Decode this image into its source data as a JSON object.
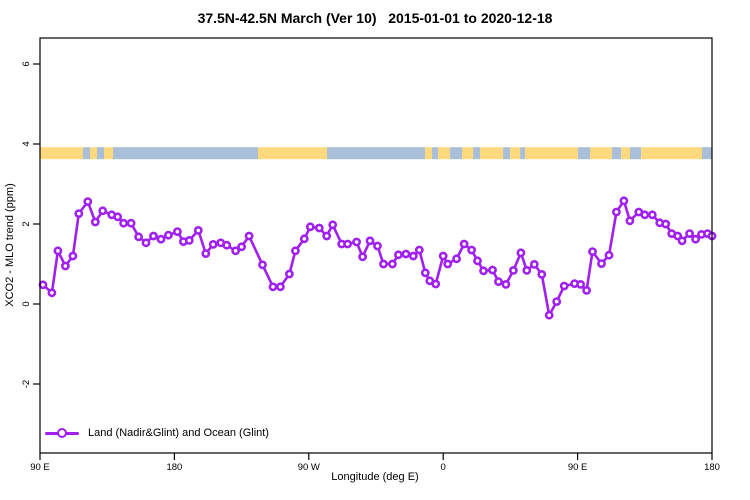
{
  "figure": {
    "title": "37.5N-42.5N March (Ver 10)   2015-01-01 to 2020-12-18",
    "xlabel": "Longitude (deg E)",
    "ylabel": "XCO2 - MLO trend (ppm)",
    "legend_label": "Land (Nadir&Glint) and Ocean (Glint)"
  },
  "colors": {
    "series": "#A020F0",
    "land": "#FFD97E",
    "ocean": "#A9BED9",
    "axis": "#000000",
    "background": "#FFFFFF"
  },
  "chart_data": {
    "type": "line",
    "title": "37.5N-42.5N March (Ver 10)   2015-01-01 to 2020-12-18",
    "xlabel": "Longitude (deg E)",
    "ylabel": "XCO2 - MLO trend (ppm)",
    "legend": {
      "position": "bottom-left",
      "entries": [
        "Land (Nadir&Glint) and Ocean (Glint)"
      ]
    },
    "grid": false,
    "x_axis": {
      "note": "degrees eastward unwrapped, 0 = 90E start of axis, 450 = 180 at right edge",
      "range": [
        0,
        450
      ],
      "ticks": [
        {
          "pos": 0,
          "label": "90 E"
        },
        {
          "pos": 90,
          "label": "180"
        },
        {
          "pos": 180,
          "label": "90 W"
        },
        {
          "pos": 270,
          "label": "0"
        },
        {
          "pos": 360,
          "label": "90 E"
        },
        {
          "pos": 450,
          "label": "180"
        }
      ]
    },
    "y_axis": {
      "range": [
        -3.72,
        6.65
      ],
      "ticks": [
        -2,
        0,
        2,
        4,
        6
      ]
    },
    "series": [
      {
        "name": "Land (Nadir&Glint) and Ocean (Glint)",
        "marker": "open-circle",
        "x": [
          2,
          8,
          12,
          17,
          22,
          26,
          32,
          37,
          42,
          48,
          52,
          56,
          61,
          66,
          71,
          76,
          81,
          86,
          92,
          96,
          100,
          106,
          111,
          116,
          121,
          125,
          131,
          135,
          140,
          149,
          156,
          161,
          167,
          171,
          177,
          181,
          187,
          192,
          196,
          202,
          206,
          212,
          216,
          221,
          226,
          230,
          236,
          240,
          245,
          250,
          254,
          258,
          261,
          265,
          270,
          273,
          279,
          284,
          289,
          293,
          297,
          303,
          307,
          312,
          317,
          322,
          326,
          331,
          336,
          341,
          346,
          351,
          358,
          362,
          366,
          370,
          376,
          381,
          386,
          391,
          395,
          401,
          405,
          410,
          415,
          419,
          423,
          427,
          430,
          435,
          439,
          443,
          447,
          450
        ],
        "y": [
          0.48,
          0.28,
          1.33,
          0.95,
          1.2,
          2.26,
          2.56,
          2.05,
          2.33,
          2.23,
          2.18,
          2.02,
          2.02,
          1.68,
          1.53,
          1.7,
          1.62,
          1.72,
          1.81,
          1.56,
          1.59,
          1.84,
          1.26,
          1.49,
          1.53,
          1.47,
          1.33,
          1.43,
          1.7,
          0.98,
          0.43,
          0.43,
          0.75,
          1.33,
          1.63,
          1.93,
          1.9,
          1.7,
          1.98,
          1.5,
          1.5,
          1.55,
          1.18,
          1.58,
          1.45,
          1.0,
          1.0,
          1.23,
          1.25,
          1.2,
          1.35,
          0.78,
          0.58,
          0.5,
          1.2,
          1.0,
          1.13,
          1.5,
          1.35,
          1.08,
          0.83,
          0.85,
          0.56,
          0.49,
          0.84,
          1.28,
          0.84,
          0.99,
          0.74,
          -0.28,
          0.06,
          0.45,
          0.51,
          0.49,
          0.34,
          1.31,
          1.01,
          1.22,
          2.3,
          2.58,
          2.08,
          2.3,
          2.23,
          2.23,
          2.03,
          2.0,
          1.76,
          1.7,
          1.58,
          1.76,
          1.62,
          1.74,
          1.76,
          1.7
        ]
      }
    ],
    "map_strip": {
      "note": "land/ocean band drawn across plot near y=3.6-3.9 ppm",
      "y_range": [
        3.62,
        3.92
      ],
      "segments": [
        {
          "from": 0,
          "to": 28.8,
          "type": "land"
        },
        {
          "from": 28.8,
          "to": 33.5,
          "type": "ocean"
        },
        {
          "from": 33.5,
          "to": 38.2,
          "type": "land"
        },
        {
          "from": 38.2,
          "to": 42.9,
          "type": "ocean"
        },
        {
          "from": 42.9,
          "to": 48.9,
          "type": "land"
        },
        {
          "from": 48.9,
          "to": 146.0,
          "type": "ocean"
        },
        {
          "from": 146.0,
          "to": 192.2,
          "type": "land"
        },
        {
          "from": 192.2,
          "to": 257.8,
          "type": "ocean"
        },
        {
          "from": 257.8,
          "to": 262.5,
          "type": "land"
        },
        {
          "from": 262.5,
          "to": 266.5,
          "type": "ocean"
        },
        {
          "from": 266.5,
          "to": 274.6,
          "type": "land"
        },
        {
          "from": 274.6,
          "to": 282.6,
          "type": "ocean"
        },
        {
          "from": 282.6,
          "to": 290.0,
          "type": "land"
        },
        {
          "from": 290.0,
          "to": 294.7,
          "type": "ocean"
        },
        {
          "from": 294.7,
          "to": 310.1,
          "type": "land"
        },
        {
          "from": 310.1,
          "to": 314.8,
          "type": "ocean"
        },
        {
          "from": 314.8,
          "to": 321.5,
          "type": "land"
        },
        {
          "from": 321.5,
          "to": 324.8,
          "type": "ocean"
        },
        {
          "from": 324.8,
          "to": 360.3,
          "type": "land"
        },
        {
          "from": 360.3,
          "to": 368.3,
          "type": "ocean"
        },
        {
          "from": 368.3,
          "to": 383.0,
          "type": "land"
        },
        {
          "from": 383.0,
          "to": 389.1,
          "type": "ocean"
        },
        {
          "from": 389.1,
          "to": 395.1,
          "type": "land"
        },
        {
          "from": 395.1,
          "to": 402.5,
          "type": "ocean"
        },
        {
          "from": 402.5,
          "to": 443.3,
          "type": "land"
        },
        {
          "from": 443.3,
          "to": 450.0,
          "type": "ocean"
        }
      ]
    }
  }
}
